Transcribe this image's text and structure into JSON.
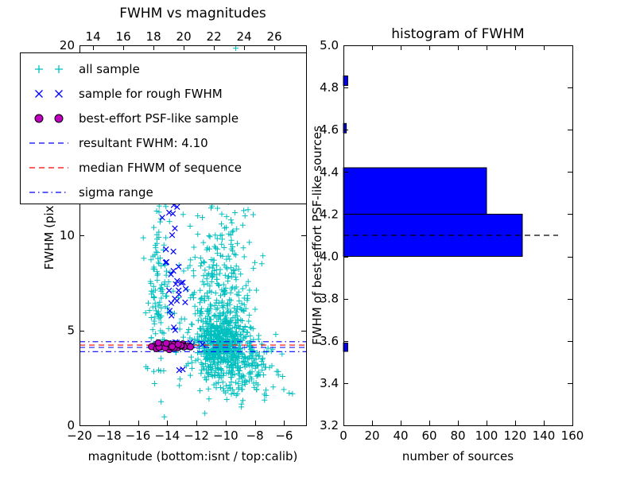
{
  "figure": {
    "background": "#ffffff"
  },
  "chart_data": [
    {
      "type": "scatter",
      "title": "FWHM vs magnitudes",
      "xlabel": "magnitude (bottom:isnt / top:calib)",
      "ylabel": "FWHM (pix)",
      "xlim": [
        -20,
        -4.5
      ],
      "ylim": [
        0,
        20
      ],
      "grid": false,
      "top_axis": {
        "lim": [
          13.1,
          28.1
        ],
        "tick_values": [
          14,
          16,
          18,
          20,
          22,
          24,
          26
        ],
        "tick_labels": [
          "14",
          "16",
          "18",
          "20",
          "22",
          "24",
          "26"
        ]
      },
      "x_axis": {
        "tick_values": [
          -20,
          -18,
          -16,
          -14,
          -12,
          -10,
          -8,
          -6
        ],
        "tick_labels": [
          "−20",
          "−18",
          "−16",
          "−14",
          "−12",
          "−10",
          "−8",
          "−6"
        ]
      },
      "y_axis": {
        "tick_values": [
          0,
          5,
          10,
          15,
          20
        ],
        "tick_labels": [
          "0",
          "5",
          "10",
          "15",
          "20"
        ]
      },
      "series": [
        {
          "name": "all sample",
          "marker": "plus",
          "color": "#00bfbf",
          "clusters": [
            {
              "n": 420,
              "cx": -10.35,
              "sx": 0.75,
              "cy": 4.3,
              "sy": 0.75
            },
            {
              "n": 220,
              "cx": -10.1,
              "sx": 1.05,
              "cy": 6.2,
              "sy": 1.7
            },
            {
              "n": 160,
              "cx": -9.4,
              "sx": 1.2,
              "cy": 3.5,
              "sy": 0.75
            },
            {
              "n": 115,
              "cx": -14.55,
              "sx": 0.4,
              "cy": 7.2,
              "sy": 2.4
            },
            {
              "n": 70,
              "cx": -8.2,
              "sx": 1.0,
              "cy": 3.1,
              "sy": 0.8
            },
            {
              "n": 80,
              "cx": -10.3,
              "sx": 1.3,
              "cy": 9.5,
              "sy": 1.6
            },
            {
              "n": 30,
              "cx": -10.6,
              "sx": 1.6,
              "cy": 14.5,
              "sy": 2.8
            },
            {
              "n": 50,
              "cx": -11.9,
              "sx": 1.5,
              "cy": 5.2,
              "sy": 1.6
            },
            {
              "n": 25,
              "cx": -9.0,
              "sx": 1.3,
              "cy": 1.9,
              "sy": 0.5
            }
          ]
        },
        {
          "name": "sample for rough FWHM",
          "marker": "x",
          "color": "#0000ff",
          "clusters": [
            {
              "n": 20,
              "cx": -13.5,
              "sx": 0.55,
              "cy": 4.25,
              "sy": 0.12
            },
            {
              "n": 26,
              "cx": -13.3,
              "sx": 0.5,
              "cy": 7.2,
              "sy": 2.0
            },
            {
              "n": 9,
              "cx": -13.9,
              "sx": 0.45,
              "cy": 11.2,
              "sy": 0.7
            }
          ]
        },
        {
          "name": "best-effort PSF-like sample",
          "marker": "circle",
          "color": "#bf00bf",
          "edge_color": "#000000",
          "clusters": [
            {
              "n": 42,
              "cx": -13.8,
              "sx": 0.62,
              "cy": 4.2,
              "sy": 0.08
            }
          ]
        }
      ],
      "lines": [
        {
          "name": "resultant FWHM: 4.10",
          "y": 4.1,
          "color": "#0000ff",
          "style": "dashed"
        },
        {
          "name": "median FHWM of sequence",
          "y": 4.22,
          "color": "#ff0000",
          "style": "dashed"
        },
        {
          "name": "sigma range upper",
          "y": 4.4,
          "color": "#0000ff",
          "style": "dashdot"
        },
        {
          "name": "sigma range lower",
          "y": 3.88,
          "color": "#0000ff",
          "style": "dashdot"
        }
      ],
      "legend": {
        "position": "upper left",
        "items": [
          {
            "label": "all sample",
            "type": "scatter",
            "marker": "plus",
            "color": "#00bfbf"
          },
          {
            "label": "sample for rough FWHM",
            "type": "scatter",
            "marker": "x",
            "color": "#0000ff"
          },
          {
            "label": "best-effort PSF-like sample",
            "type": "scatter",
            "marker": "circle",
            "color": "#bf00bf"
          },
          {
            "label": "resultant FWHM: 4.10",
            "type": "line",
            "style": "dashed",
            "color": "#0000ff"
          },
          {
            "label": "median FHWM of sequence",
            "type": "line",
            "style": "dashed",
            "color": "#ff0000"
          },
          {
            "label": "sigma range",
            "type": "line",
            "style": "dashdot",
            "color": "#0000ff"
          }
        ]
      }
    },
    {
      "type": "bar",
      "orientation": "horizontal",
      "title": "histogram of FWHM",
      "xlabel": "number of sources",
      "ylabel": "FWHM of best-effort PSF-like sources",
      "xlim": [
        0,
        160
      ],
      "ylim": [
        3.2,
        5.0
      ],
      "grid": false,
      "x_axis": {
        "tick_values": [
          0,
          20,
          40,
          60,
          80,
          100,
          120,
          140,
          160
        ],
        "tick_labels": [
          "0",
          "20",
          "40",
          "60",
          "80",
          "100",
          "120",
          "140",
          "160"
        ]
      },
      "y_axis": {
        "tick_values": [
          3.2,
          3.4,
          3.6,
          3.8,
          4.0,
          4.2,
          4.4,
          4.6,
          4.8,
          5.0
        ],
        "tick_labels": [
          "3.2",
          "3.4",
          "3.6",
          "3.8",
          "4.0",
          "4.2",
          "4.4",
          "4.6",
          "4.8",
          "5.0"
        ]
      },
      "bars": [
        {
          "from": 3.55,
          "to": 3.59,
          "count": 3
        },
        {
          "from": 4.0,
          "to": 4.2,
          "count": 125
        },
        {
          "from": 4.2,
          "to": 4.42,
          "count": 100
        },
        {
          "from": 4.585,
          "to": 4.63,
          "count": 2
        },
        {
          "from": 4.81,
          "to": 4.855,
          "count": 3
        }
      ],
      "bar_color": "#0000ff",
      "bar_edge_color": "#000000",
      "median_line": {
        "y": 4.1,
        "x_start": 0,
        "x_end": 150,
        "color": "#000000",
        "style": "dashed"
      }
    }
  ]
}
